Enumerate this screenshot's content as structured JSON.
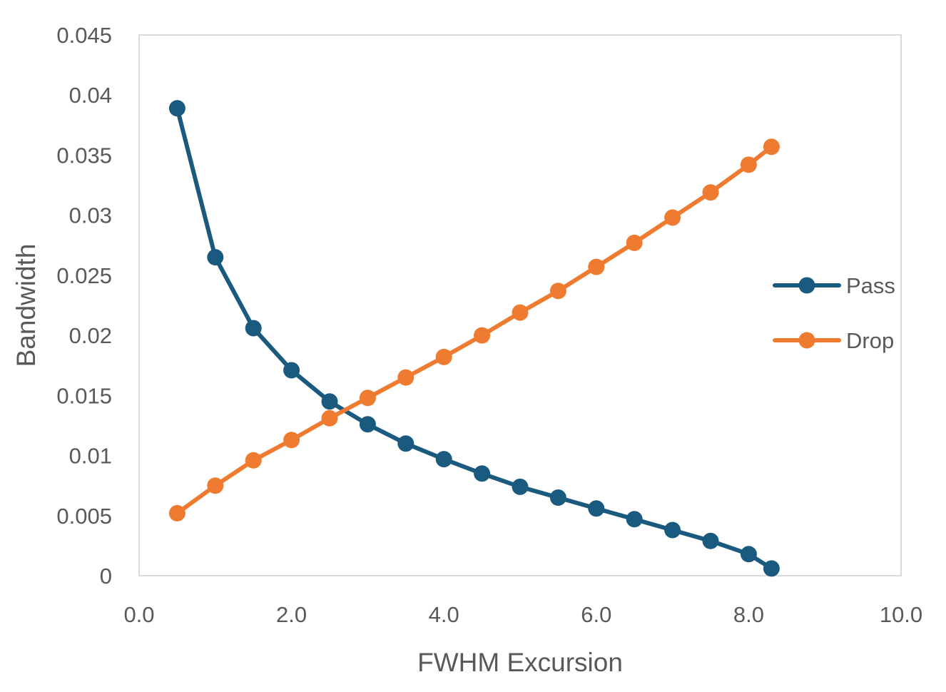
{
  "chart_data": {
    "type": "scatter",
    "xlabel": "FWHM Excursion",
    "ylabel": "Bandwidth",
    "xlim": [
      0,
      10
    ],
    "ylim": [
      0,
      0.045
    ],
    "x_ticks": [
      "0.0",
      "2.0",
      "4.0",
      "6.0",
      "8.0",
      "10.0"
    ],
    "y_ticks": [
      "0",
      "0.005",
      "0.01",
      "0.015",
      "0.02",
      "0.025",
      "0.03",
      "0.035",
      "0.04",
      "0.045"
    ],
    "grid": false,
    "legend_position": "right",
    "series": [
      {
        "name": "Pass",
        "color": "#1a5a7e",
        "x": [
          0.5,
          1.0,
          1.5,
          2.0,
          2.5,
          3.0,
          3.5,
          4.0,
          4.5,
          5.0,
          5.5,
          6.0,
          6.5,
          7.0,
          7.5,
          8.0,
          8.3
        ],
        "y": [
          0.0389,
          0.0265,
          0.0206,
          0.0171,
          0.0145,
          0.0126,
          0.011,
          0.0097,
          0.0085,
          0.0074,
          0.0065,
          0.0056,
          0.0047,
          0.0038,
          0.0029,
          0.0018,
          0.0006
        ]
      },
      {
        "name": "Drop",
        "color": "#ef7b30",
        "x": [
          0.5,
          1.0,
          1.5,
          2.0,
          2.5,
          3.0,
          3.5,
          4.0,
          4.5,
          5.0,
          5.5,
          6.0,
          6.5,
          7.0,
          7.5,
          8.0,
          8.3
        ],
        "y": [
          0.0052,
          0.0075,
          0.0096,
          0.0113,
          0.0131,
          0.0148,
          0.0165,
          0.0182,
          0.02,
          0.0219,
          0.0237,
          0.0257,
          0.0277,
          0.0298,
          0.0319,
          0.0342,
          0.0357
        ]
      }
    ]
  }
}
